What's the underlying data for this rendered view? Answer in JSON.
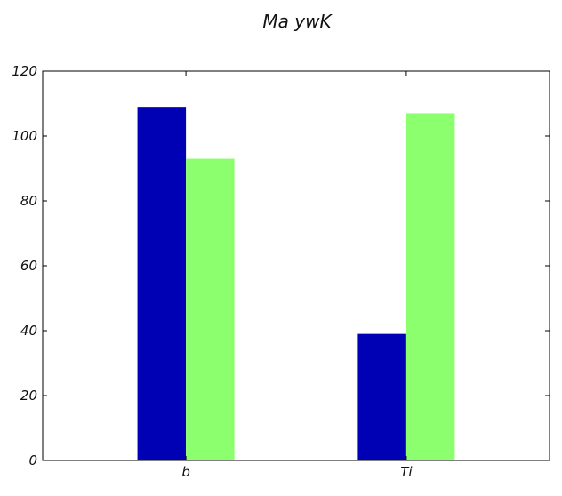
{
  "chart_data": {
    "type": "bar",
    "title": "Ma ywK",
    "xlabel": "",
    "ylabel": "",
    "categories": [
      "b",
      "Ti"
    ],
    "series": [
      {
        "values": [
          109,
          39
        ],
        "color": "#0000b4"
      },
      {
        "values": [
          93,
          107
        ],
        "color": "#8cff6e"
      }
    ],
    "ylim": [
      0,
      120
    ],
    "yticks": [
      0,
      20,
      40,
      60,
      80,
      100,
      120
    ],
    "grid": false,
    "legend": "none"
  }
}
